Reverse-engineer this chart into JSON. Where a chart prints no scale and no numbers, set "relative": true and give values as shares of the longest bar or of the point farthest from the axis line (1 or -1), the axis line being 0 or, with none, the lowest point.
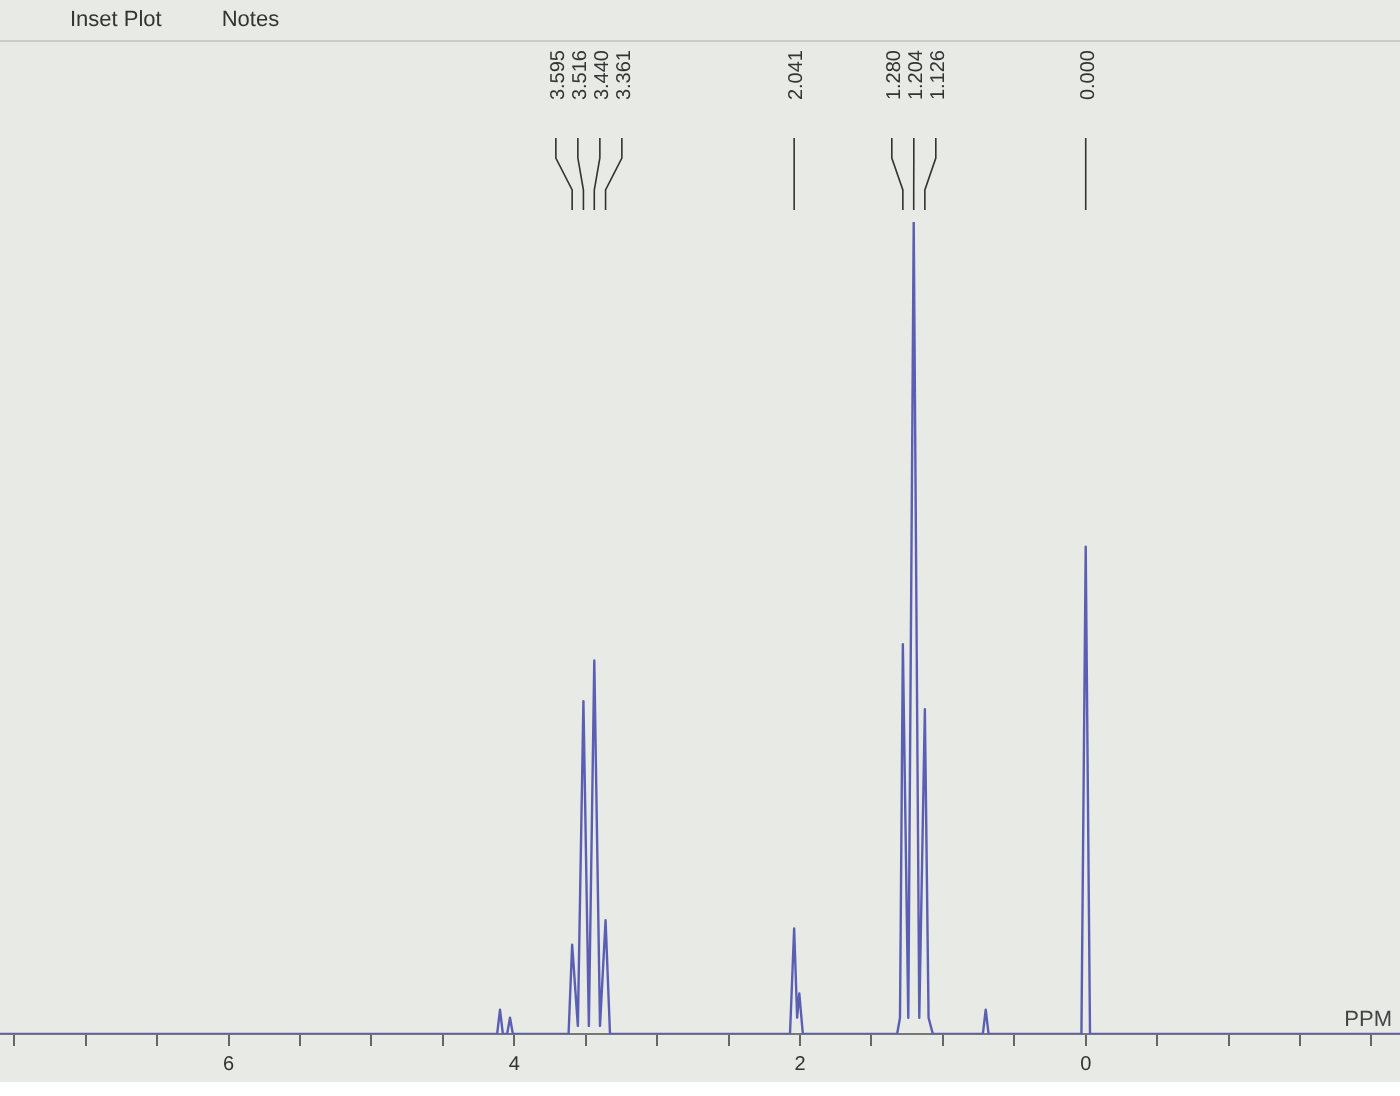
{
  "chart_data": {
    "type": "line",
    "relative": true,
    "xlabel": "PPM",
    "color": "#5b5fb4",
    "grid": false,
    "legend": false,
    "marker": "none",
    "line_style": "solid",
    "xlim": [
      7.6,
      -2.2
    ],
    "xticks": [
      {
        "value": 7.5,
        "label": null
      },
      {
        "value": 7,
        "label": null
      },
      {
        "value": 6.5,
        "label": null
      },
      6,
      {
        "value": 5.5,
        "label": null
      },
      {
        "value": 5,
        "label": null
      },
      {
        "value": 4.5,
        "label": null
      },
      4,
      {
        "value": 3.5,
        "label": null
      },
      {
        "value": 3,
        "label": null
      },
      {
        "value": 2.5,
        "label": null
      },
      2,
      {
        "value": 1.5,
        "label": null
      },
      {
        "value": 1,
        "label": null
      },
      {
        "value": 0.5,
        "label": null
      },
      0,
      {
        "value": -0.5,
        "label": null
      },
      {
        "value": -1,
        "label": null
      },
      {
        "value": -1.5,
        "label": null
      },
      {
        "value": -2,
        "label": null
      }
    ],
    "x": [
      7.6,
      4.12,
      4.1,
      4.08,
      4.05,
      4.03,
      4.01,
      3.62,
      3.595,
      3.555,
      3.516,
      3.478,
      3.44,
      3.4,
      3.361,
      3.33,
      2.07,
      2.041,
      2.02,
      2.005,
      1.98,
      1.32,
      1.3,
      1.28,
      1.242,
      1.204,
      1.165,
      1.126,
      1.1,
      1.07,
      0.72,
      0.7,
      0.68,
      0.03,
      0,
      -0.03,
      -2.2
    ],
    "values": [
      0,
      0,
      0.03,
      0,
      0,
      0.02,
      0,
      0,
      0.11,
      0.01,
      0.41,
      0.01,
      0.46,
      0.01,
      0.14,
      0,
      0,
      0.13,
      0.02,
      0.05,
      0,
      0,
      0.02,
      0.48,
      0.02,
      1,
      0.02,
      0.4,
      0.02,
      0,
      0,
      0.03,
      0,
      0,
      0.6,
      0,
      0
    ],
    "annotations": [
      "Inset Plot",
      "Notes",
      "3.595",
      "3.516",
      "3.440",
      "3.361",
      "2.041",
      "1.280",
      "1.204",
      "1.126",
      "0.000"
    ]
  }
}
